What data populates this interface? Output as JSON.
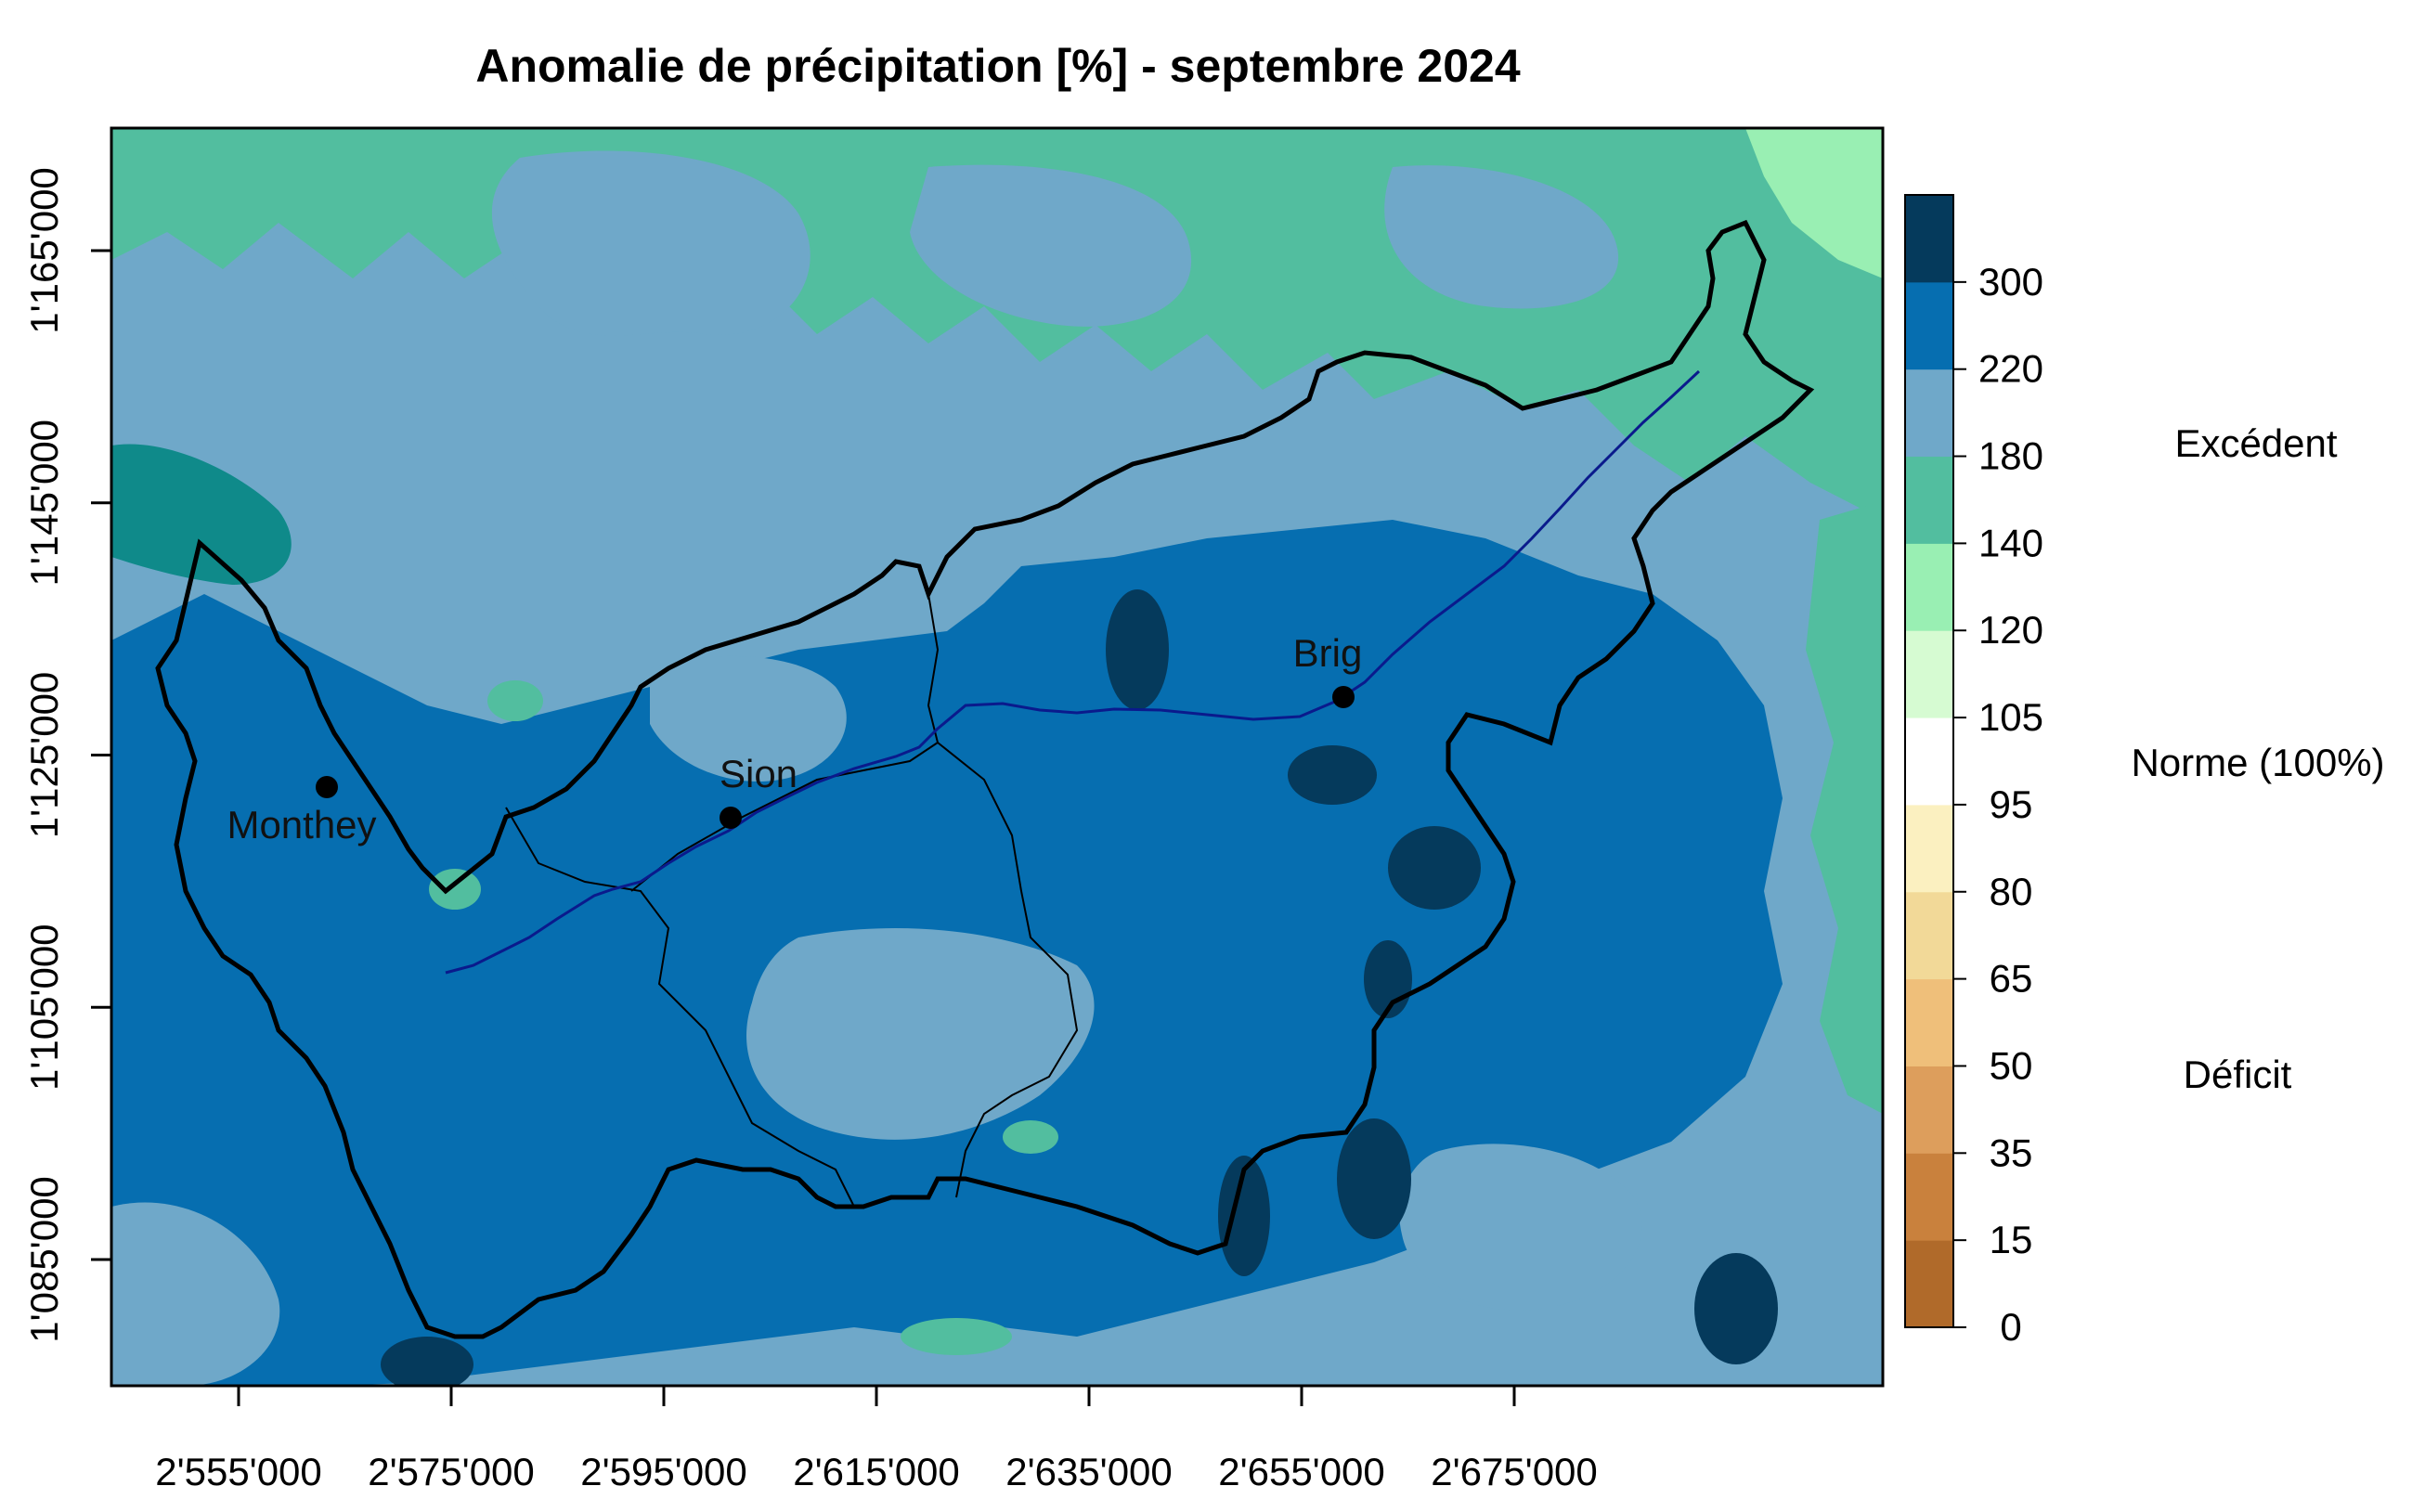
{
  "title": "Anomalie de précipitation [%] - septembre 2024",
  "x_axis": {
    "ticks": [
      {
        "value": 2555000,
        "label": "2'555'000"
      },
      {
        "value": 2575000,
        "label": "2'575'000"
      },
      {
        "value": 2595000,
        "label": "2'595'000"
      },
      {
        "value": 2615000,
        "label": "2'615'000"
      },
      {
        "value": 2635000,
        "label": "2'635'000"
      },
      {
        "value": 2655000,
        "label": "2'655'000"
      },
      {
        "value": 2675000,
        "label": "2'675'000"
      }
    ]
  },
  "y_axis": {
    "ticks": [
      {
        "value": 1085000,
        "label": "1'085'000"
      },
      {
        "value": 1105000,
        "label": "1'105'000"
      },
      {
        "value": 1125000,
        "label": "1'125'000"
      },
      {
        "value": 1145000,
        "label": "1'145'000"
      },
      {
        "value": 1165000,
        "label": "1'165'000"
      }
    ]
  },
  "cities": [
    {
      "name": "Monthey",
      "label": "Monthey"
    },
    {
      "name": "Sion",
      "label": "Sion"
    },
    {
      "name": "Brig",
      "label": "Brig"
    }
  ],
  "legend": {
    "classes": [
      {
        "from": 0,
        "to": 15,
        "color": "#b06a2a"
      },
      {
        "from": 15,
        "to": 35,
        "color": "#c9813d"
      },
      {
        "from": 35,
        "to": 50,
        "color": "#dd9e5c"
      },
      {
        "from": 50,
        "to": 65,
        "color": "#efbf7a"
      },
      {
        "from": 65,
        "to": 80,
        "color": "#f2d998"
      },
      {
        "from": 80,
        "to": 95,
        "color": "#fbf0c0"
      },
      {
        "from": 95,
        "to": 105,
        "color": "#ffffff"
      },
      {
        "from": 105,
        "to": 120,
        "color": "#d6fbd2"
      },
      {
        "from": 120,
        "to": 140,
        "color": "#99efb3"
      },
      {
        "from": 140,
        "to": 180,
        "color": "#52be9f"
      },
      {
        "from": 180,
        "to": 220,
        "color": "#6fa8c9"
      },
      {
        "from": 220,
        "to": 300,
        "color": "#066eb0"
      },
      {
        "from": 300,
        "to": null,
        "color": "#053a5c"
      }
    ],
    "tick_labels": [
      "0",
      "15",
      "35",
      "50",
      "65",
      "80",
      "95",
      "105",
      "120",
      "140",
      "180",
      "220",
      "300"
    ],
    "category_labels": {
      "excess": "Excédent",
      "normal": "Norme (100%)",
      "deficit": "Déficit"
    }
  },
  "colors": {
    "border": "#000000",
    "river": "#0a1a8c"
  }
}
